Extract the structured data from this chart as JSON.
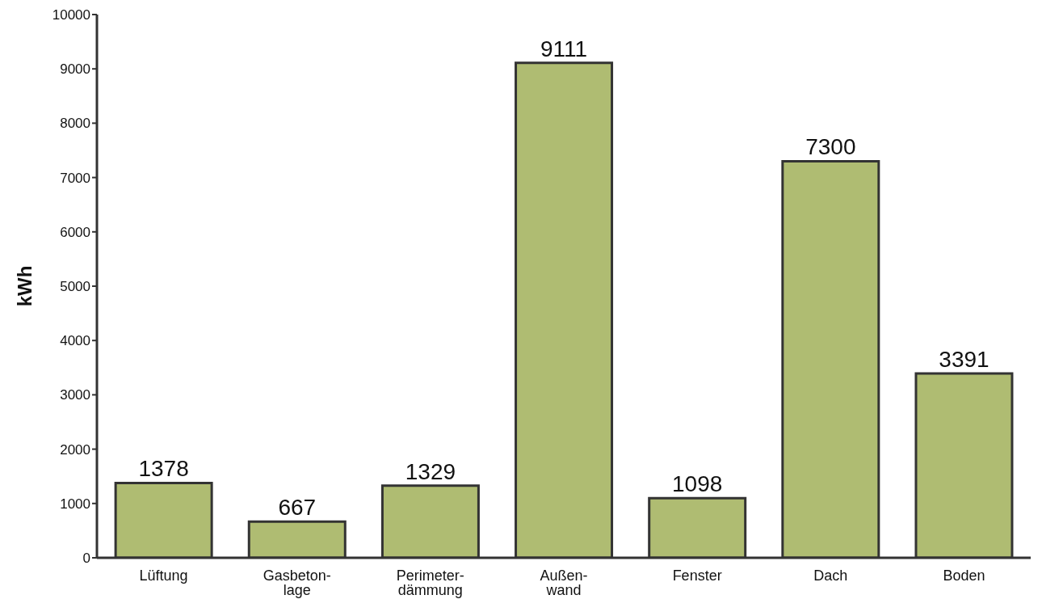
{
  "chart_data": {
    "type": "bar",
    "ylabel": "kWh",
    "categories": [
      "Lüftung",
      "Gasbeton-\nlage",
      "Perimeter-\ndämmung",
      "Außen-\nwand",
      "Fenster",
      "Dach",
      "Boden"
    ],
    "values": [
      1378,
      667,
      1329,
      9111,
      1098,
      7300,
      3391
    ],
    "color": "#afbc72",
    "ylim": [
      0,
      10000
    ],
    "yticks": [
      0,
      1000,
      2000,
      3000,
      4000,
      5000,
      6000,
      7000,
      8000,
      9000,
      10000
    ],
    "grid": false,
    "data_labels": true
  }
}
